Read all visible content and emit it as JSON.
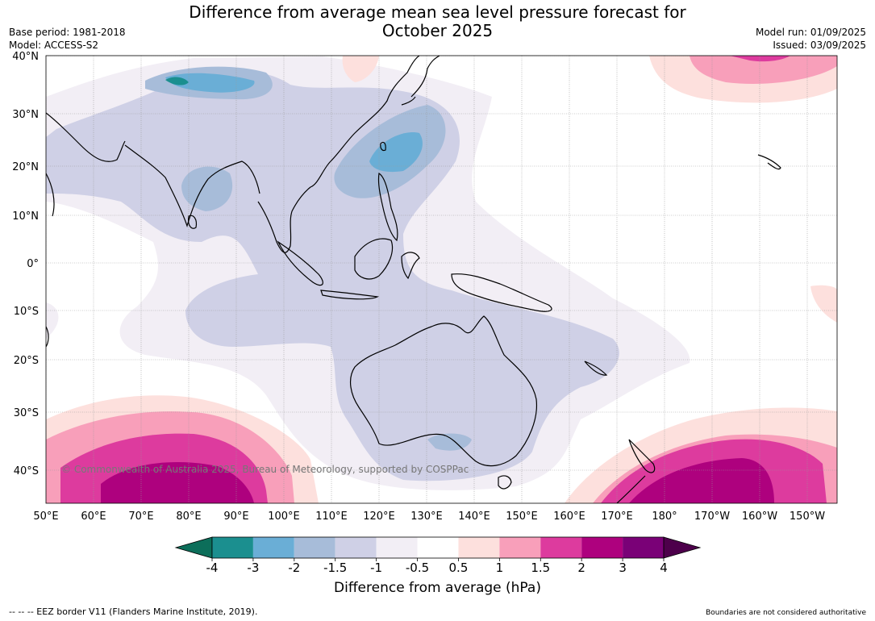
{
  "title_line1": "Difference from average mean sea level pressure forecast for",
  "title_line2": "October 2025",
  "meta_left": [
    "Base period: 1981-2018",
    "Model: ACCESS-S2"
  ],
  "meta_right": [
    "Model run: 01/09/2025",
    "Issued: 03/09/2025"
  ],
  "lat_labels": [
    "40°N",
    "30°N",
    "20°N",
    "10°N",
    "0°",
    "10°S",
    "20°S",
    "30°S",
    "40°S"
  ],
  "lon_labels": [
    "50°E",
    "60°E",
    "70°E",
    "80°E",
    "90°E",
    "100°E",
    "110°E",
    "120°E",
    "130°E",
    "140°E",
    "150°E",
    "160°E",
    "170°E",
    "180°",
    "170°W",
    "160°W",
    "150°W"
  ],
  "watermark": "© Commonwealth of Australia 2025, Bureau of Meteorology, supported by COSPPac",
  "colorbar": {
    "ticks": [
      "-4",
      "-3",
      "-2",
      "-1.5",
      "-1",
      "-0.5",
      "0.5",
      "1",
      "1.5",
      "2",
      "3",
      "4"
    ],
    "colors": [
      "#1b8f8f",
      "#6aaed6",
      "#a7bcd9",
      "#cfd0e6",
      "#f2eef5",
      "#ffffff",
      "#fde0dd",
      "#f89fba",
      "#dd3b9e",
      "#ae017e",
      "#7a0177"
    ],
    "under_color": "#0c6e5a",
    "over_color": "#4d004b",
    "label": "Difference from average (hPa)"
  },
  "footer_left": "--  --  -- EEZ border V11 (Flanders Marine Institute, 2019).",
  "footer_right": "Boundaries are not considered authoritative"
}
